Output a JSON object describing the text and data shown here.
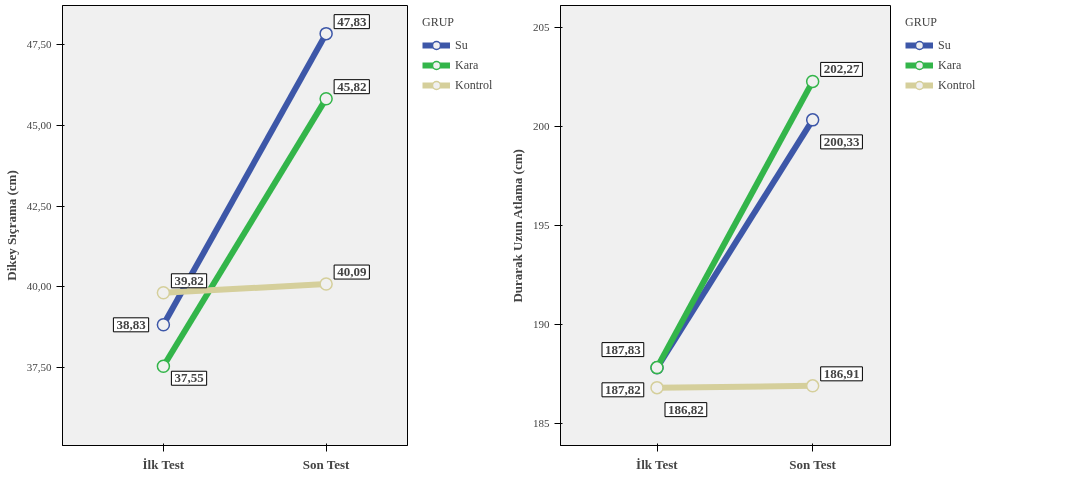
{
  "chart_data": [
    {
      "type": "line",
      "ylabel": "Dikey Sıçrama (cm)",
      "legend_title": "GRUP",
      "legend": "right",
      "marker": "circle",
      "grid": false,
      "categories": [
        "İlk Test",
        "Son Test"
      ],
      "ylim": [
        35.1,
        48.7
      ],
      "yticks": [
        {
          "value": 37.5,
          "label": "37,50"
        },
        {
          "value": 40,
          "label": "40,00"
        },
        {
          "value": 42.5,
          "label": "42,50"
        },
        {
          "value": 45,
          "label": "45,00"
        },
        {
          "value": 47.5,
          "label": "47,50"
        }
      ],
      "series": [
        {
          "name": "Su",
          "color": "#3d57a8",
          "values": [
            38.83,
            47.83
          ],
          "value_labels": [
            "38,83",
            "47,83"
          ]
        },
        {
          "name": "Kara",
          "color": "#33b54a",
          "values": [
            37.55,
            45.82
          ],
          "value_labels": [
            "37,55",
            "45,82"
          ]
        },
        {
          "name": "Kontrol",
          "color": "#d5cf9b",
          "values": [
            39.82,
            40.09
          ],
          "value_labels": [
            "39,82",
            "40,09"
          ]
        }
      ]
    },
    {
      "type": "line",
      "ylabel": "Durarak Uzun Atlama (cm)",
      "legend_title": "GRUP",
      "legend": "right",
      "marker": "circle",
      "grid": false,
      "categories": [
        "İlk Test",
        "Son Test"
      ],
      "ylim": [
        183.9,
        206.1
      ],
      "yticks": [
        185,
        190,
        195,
        200,
        205
      ],
      "series": [
        {
          "name": "Su",
          "color": "#3d57a8",
          "values": [
            187.82,
            200.33
          ],
          "value_labels": [
            "187,82",
            "200,33"
          ]
        },
        {
          "name": "Kara",
          "color": "#33b54a",
          "values": [
            187.83,
            202.27
          ],
          "value_labels": [
            "187,83",
            "202,27"
          ]
        },
        {
          "name": "Kontrol",
          "color": "#d5cf9b",
          "values": [
            186.82,
            186.91
          ],
          "value_labels": [
            "186,82",
            "186,91"
          ]
        }
      ]
    }
  ]
}
